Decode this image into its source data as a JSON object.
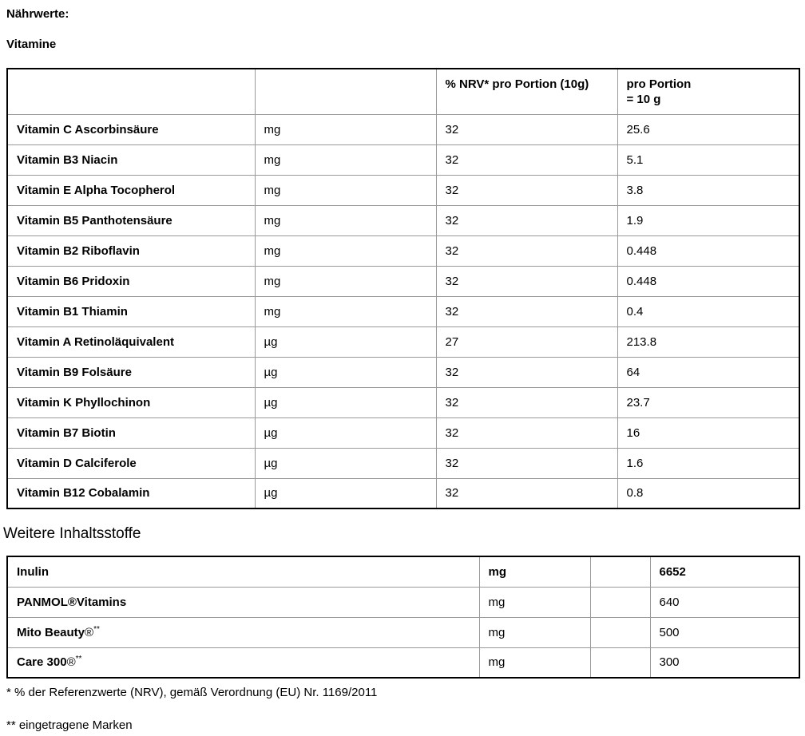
{
  "page": {
    "heading1": "Nährwerte:",
    "heading2": "Vitamine",
    "heading3": "Weitere Inhaltsstoffe",
    "footnotes": [
      "* % der Referenzwerte (NRV), gemäß Verordnung (EU) Nr. 1169/2011",
      "** eingetragene Marken"
    ]
  },
  "vitamins_table": {
    "col_headers": {
      "name": "",
      "unit": "",
      "nrv": "% NRV* pro Portion (10g)",
      "portion_line1": "pro Portion",
      "portion_line2": "= 10 g"
    },
    "rows": [
      {
        "name": "Vitamin C Ascorbinsäure",
        "unit": "mg",
        "nrv": "32",
        "amount": "25.6"
      },
      {
        "name": "Vitamin B3 Niacin",
        "unit": "mg",
        "nrv": "32",
        "amount": "5.1"
      },
      {
        "name": "Vitamin E Alpha Tocopherol",
        "unit": "mg",
        "nrv": "32",
        "amount": "3.8"
      },
      {
        "name": "Vitamin B5 Panthotensäure",
        "unit": "mg",
        "nrv": "32",
        "amount": "1.9"
      },
      {
        "name": "Vitamin B2 Riboflavin",
        "unit": "mg",
        "nrv": "32",
        "amount": "0.448"
      },
      {
        "name": "Vitamin B6 Pridoxin",
        "unit": "mg",
        "nrv": "32",
        "amount": "0.448"
      },
      {
        "name": "Vitamin B1 Thiamin",
        "unit": "mg",
        "nrv": "32",
        "amount": "0.4"
      },
      {
        "name": "Vitamin A Retinoläquivalent",
        "unit": "µg",
        "nrv": "27",
        "amount": "213.8"
      },
      {
        "name": "Vitamin B9 Folsäure",
        "unit": "µg",
        "nrv": "32",
        "amount": "64"
      },
      {
        "name": "Vitamin K Phyllochinon",
        "unit": "µg",
        "nrv": "32",
        "amount": "23.7"
      },
      {
        "name": "Vitamin B7 Biotin",
        "unit": "µg",
        "nrv": "32",
        "amount": "16"
      },
      {
        "name": "Vitamin D Calciferole",
        "unit": "µg",
        "nrv": "32",
        "amount": "1.6"
      },
      {
        "name": "Vitamin B12 Cobalamin",
        "unit": "µg",
        "nrv": "32",
        "amount": "0.8"
      }
    ]
  },
  "ingredients_table": {
    "rows": [
      {
        "name": "Inulin",
        "reg": "",
        "sup": "",
        "unit": "mg",
        "spacer": "",
        "amount": "6652",
        "bold_row": true
      },
      {
        "name": "PANMOL®Vitamins",
        "reg": "",
        "sup": "",
        "unit": "mg",
        "spacer": "",
        "amount": "640",
        "bold_row": false
      },
      {
        "name": "Mito Beauty",
        "reg": "®",
        "sup": "**",
        "unit": "mg",
        "spacer": "",
        "amount": "500",
        "bold_row": false
      },
      {
        "name": "Care 300",
        "reg": "®",
        "sup": "**",
        "unit": "mg",
        "spacer": "",
        "amount": "300",
        "bold_row": false
      }
    ]
  }
}
